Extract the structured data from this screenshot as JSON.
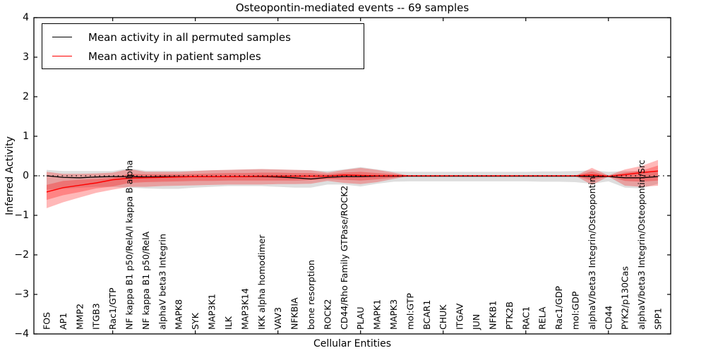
{
  "figure": {
    "title": "Osteopontin-mediated events -- 69 samples",
    "xlabel": "Cellular Entities",
    "ylabel": "Inferred Activity"
  },
  "legend": {
    "items": [
      {
        "label": "Mean activity in all permuted samples",
        "color": "#000000"
      },
      {
        "label": "Mean activity in patient samples",
        "color": "#ff0000"
      }
    ]
  },
  "chart_data": {
    "type": "line",
    "title": "Osteopontin-mediated events -- 69 samples",
    "xlabel": "Cellular Entities",
    "ylabel": "Inferred Activity",
    "ylim": [
      -4,
      4
    ],
    "yticks": [
      -4,
      -3,
      -2,
      -1,
      0,
      1,
      2,
      3,
      4
    ],
    "xticks_top_data": [
      5,
      10,
      15,
      20,
      25,
      30,
      35
    ],
    "grid": false,
    "legend_position": "upper left",
    "zero_line": {
      "y": 0,
      "style": "dotted",
      "color": "#000000"
    },
    "categories": [
      "FOS",
      "AP1",
      "MMP2",
      "ITGB3",
      "Rac1/GTP",
      "NF kappa B1 p50/RelA/I kappa B alpha",
      "NF kappa B1 p50/RelA",
      "alphaV beta3 Integrin",
      "MAPK8",
      "SYK",
      "MAP3K1",
      "ILK",
      "MAP3K14",
      "IKK alpha homodimer",
      "VAV3",
      "NFKBIA",
      "bone resorption",
      "ROCK2",
      "CD44/Rho Family GTPase/ROCK2",
      "PLAU",
      "MAPK1",
      "MAPK3",
      "mol:GTP",
      "BCAR1",
      "CHUK",
      "ITGAV",
      "JUN",
      "NFKB1",
      "PTK2B",
      "RAC1",
      "RELA",
      "Rac1/GDP",
      "mol:GDP",
      "alphaV/beta3 Integrin/Osteopontin",
      "CD44",
      "PYK2/p130Cas",
      "alphaV/beta3 Integrin/Osteopontin/Src",
      "SPP1"
    ],
    "series": [
      {
        "name": "Mean activity in all permuted samples",
        "color": "#000000",
        "values": [
          0.0,
          -0.04,
          -0.05,
          -0.03,
          -0.02,
          -0.02,
          -0.03,
          -0.02,
          -0.02,
          -0.02,
          -0.02,
          -0.02,
          -0.02,
          -0.02,
          -0.03,
          -0.05,
          -0.08,
          -0.04,
          -0.02,
          -0.02,
          -0.01,
          -0.01,
          -0.01,
          -0.01,
          -0.01,
          -0.01,
          -0.01,
          -0.01,
          -0.01,
          -0.01,
          -0.01,
          -0.01,
          -0.01,
          -0.02,
          -0.02,
          -0.05,
          -0.05,
          -0.02
        ]
      },
      {
        "name": "Mean activity in patient samples",
        "color": "#ff0000",
        "values": [
          -0.41,
          -0.3,
          -0.24,
          -0.18,
          -0.1,
          -0.06,
          -0.05,
          -0.04,
          -0.03,
          -0.02,
          -0.02,
          -0.02,
          -0.02,
          -0.01,
          -0.01,
          -0.01,
          -0.01,
          -0.01,
          0.02,
          0.01,
          0.0,
          0.0,
          0.0,
          0.0,
          0.0,
          0.0,
          0.0,
          0.0,
          0.0,
          0.0,
          0.0,
          0.0,
          0.0,
          0.02,
          -0.01,
          0.03,
          0.08,
          0.12
        ]
      }
    ],
    "bands": [
      {
        "name": "permuted-samples-range",
        "color": "rgba(0,0,0,0.13)",
        "upper": [
          0.15,
          0.12,
          0.12,
          0.12,
          0.12,
          0.19,
          0.13,
          0.13,
          0.13,
          0.13,
          0.14,
          0.15,
          0.16,
          0.17,
          0.16,
          0.15,
          0.14,
          0.12,
          0.16,
          0.22,
          0.16,
          0.11,
          0.1,
          0.1,
          0.1,
          0.1,
          0.1,
          0.1,
          0.1,
          0.1,
          0.11,
          0.11,
          0.12,
          0.14,
          0.1,
          0.12,
          0.12,
          0.1
        ],
        "lower": [
          -0.35,
          -0.33,
          -0.3,
          -0.28,
          -0.28,
          -0.3,
          -0.32,
          -0.33,
          -0.33,
          -0.3,
          -0.28,
          -0.26,
          -0.26,
          -0.26,
          -0.28,
          -0.3,
          -0.3,
          -0.22,
          -0.22,
          -0.27,
          -0.2,
          -0.15,
          -0.14,
          -0.14,
          -0.14,
          -0.14,
          -0.14,
          -0.14,
          -0.14,
          -0.14,
          -0.15,
          -0.15,
          -0.16,
          -0.2,
          -0.14,
          -0.3,
          -0.32,
          -0.2
        ]
      },
      {
        "name": "patient-samples-range-outer",
        "color": "rgba(255,0,0,0.28)",
        "upper": [
          0.1,
          0.05,
          0.05,
          0.06,
          0.08,
          0.17,
          0.1,
          0.1,
          0.1,
          0.12,
          0.14,
          0.15,
          0.16,
          0.17,
          0.16,
          0.15,
          0.14,
          0.08,
          0.15,
          0.2,
          0.15,
          0.08,
          0.0,
          0.0,
          0.0,
          0.0,
          0.0,
          0.0,
          0.0,
          0.0,
          0.0,
          0.0,
          0.0,
          0.2,
          0.01,
          0.16,
          0.25,
          0.4
        ],
        "lower": [
          -0.82,
          -0.67,
          -0.55,
          -0.43,
          -0.35,
          -0.28,
          -0.28,
          -0.26,
          -0.25,
          -0.24,
          -0.23,
          -0.22,
          -0.22,
          -0.22,
          -0.21,
          -0.21,
          -0.2,
          -0.13,
          -0.18,
          -0.21,
          -0.16,
          -0.08,
          0.0,
          0.0,
          0.0,
          0.0,
          0.0,
          0.0,
          0.0,
          0.0,
          0.0,
          0.0,
          0.0,
          -0.23,
          -0.02,
          -0.25,
          -0.28,
          -0.25
        ]
      },
      {
        "name": "patient-samples-range-inner",
        "color": "rgba(255,0,0,0.28)",
        "upper": [
          -0.23,
          -0.13,
          -0.1,
          -0.08,
          -0.05,
          0.05,
          0.04,
          0.04,
          0.04,
          0.05,
          0.06,
          0.07,
          0.07,
          0.08,
          0.08,
          0.07,
          0.07,
          0.04,
          0.08,
          0.1,
          0.07,
          0.04,
          0.0,
          0.0,
          0.0,
          0.0,
          0.0,
          0.0,
          0.0,
          0.0,
          0.0,
          0.0,
          0.0,
          0.11,
          0.0,
          0.08,
          0.13,
          0.26
        ],
        "lower": [
          -0.61,
          -0.49,
          -0.41,
          -0.32,
          -0.27,
          -0.18,
          -0.16,
          -0.15,
          -0.14,
          -0.13,
          -0.13,
          -0.12,
          -0.12,
          -0.12,
          -0.12,
          -0.12,
          -0.11,
          -0.08,
          -0.1,
          -0.12,
          -0.09,
          -0.05,
          0.0,
          0.0,
          0.0,
          0.0,
          0.0,
          0.0,
          0.0,
          0.0,
          0.0,
          0.0,
          0.0,
          -0.12,
          -0.01,
          -0.13,
          -0.15,
          -0.12
        ]
      }
    ]
  }
}
